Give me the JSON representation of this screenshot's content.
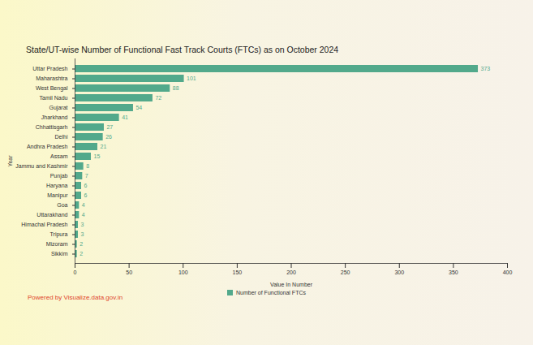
{
  "chart_data": {
    "type": "bar",
    "orientation": "horizontal",
    "title": "State/UT-wise Number of Functional Fast Track Courts (FTCs) as on October 2024",
    "x_label": "Value In Number",
    "y_label": "Year",
    "caption": "Powered by Visualize.data.gov.in",
    "categories": [
      "Uttar Pradesh",
      "Maharashtra",
      "West Bengal",
      "Tamil Nadu",
      "Gujarat",
      "Jharkhand",
      "Chhattisgarh",
      "Delhi",
      "Andhra Pradesh",
      "Assam",
      "Jammu and Kashmir",
      "Punjab",
      "Haryana",
      "Manipur",
      "Goa",
      "Uttarakhand",
      "Himachal Pradesh",
      "Tripura",
      "Mizoram",
      "Sikkim"
    ],
    "series": [
      {
        "name": "Number of Functional FTCs",
        "color": "#52a98b",
        "values": [
          373,
          101,
          88,
          72,
          54,
          41,
          27,
          26,
          21,
          15,
          8,
          7,
          6,
          6,
          4,
          4,
          3,
          3,
          2,
          2
        ]
      }
    ],
    "xlim": [
      0,
      400
    ],
    "xticks": [
      0,
      50,
      100,
      150,
      200,
      250,
      300,
      350,
      400
    ],
    "data_labels": true,
    "legend": "bottom",
    "grid": false
  }
}
